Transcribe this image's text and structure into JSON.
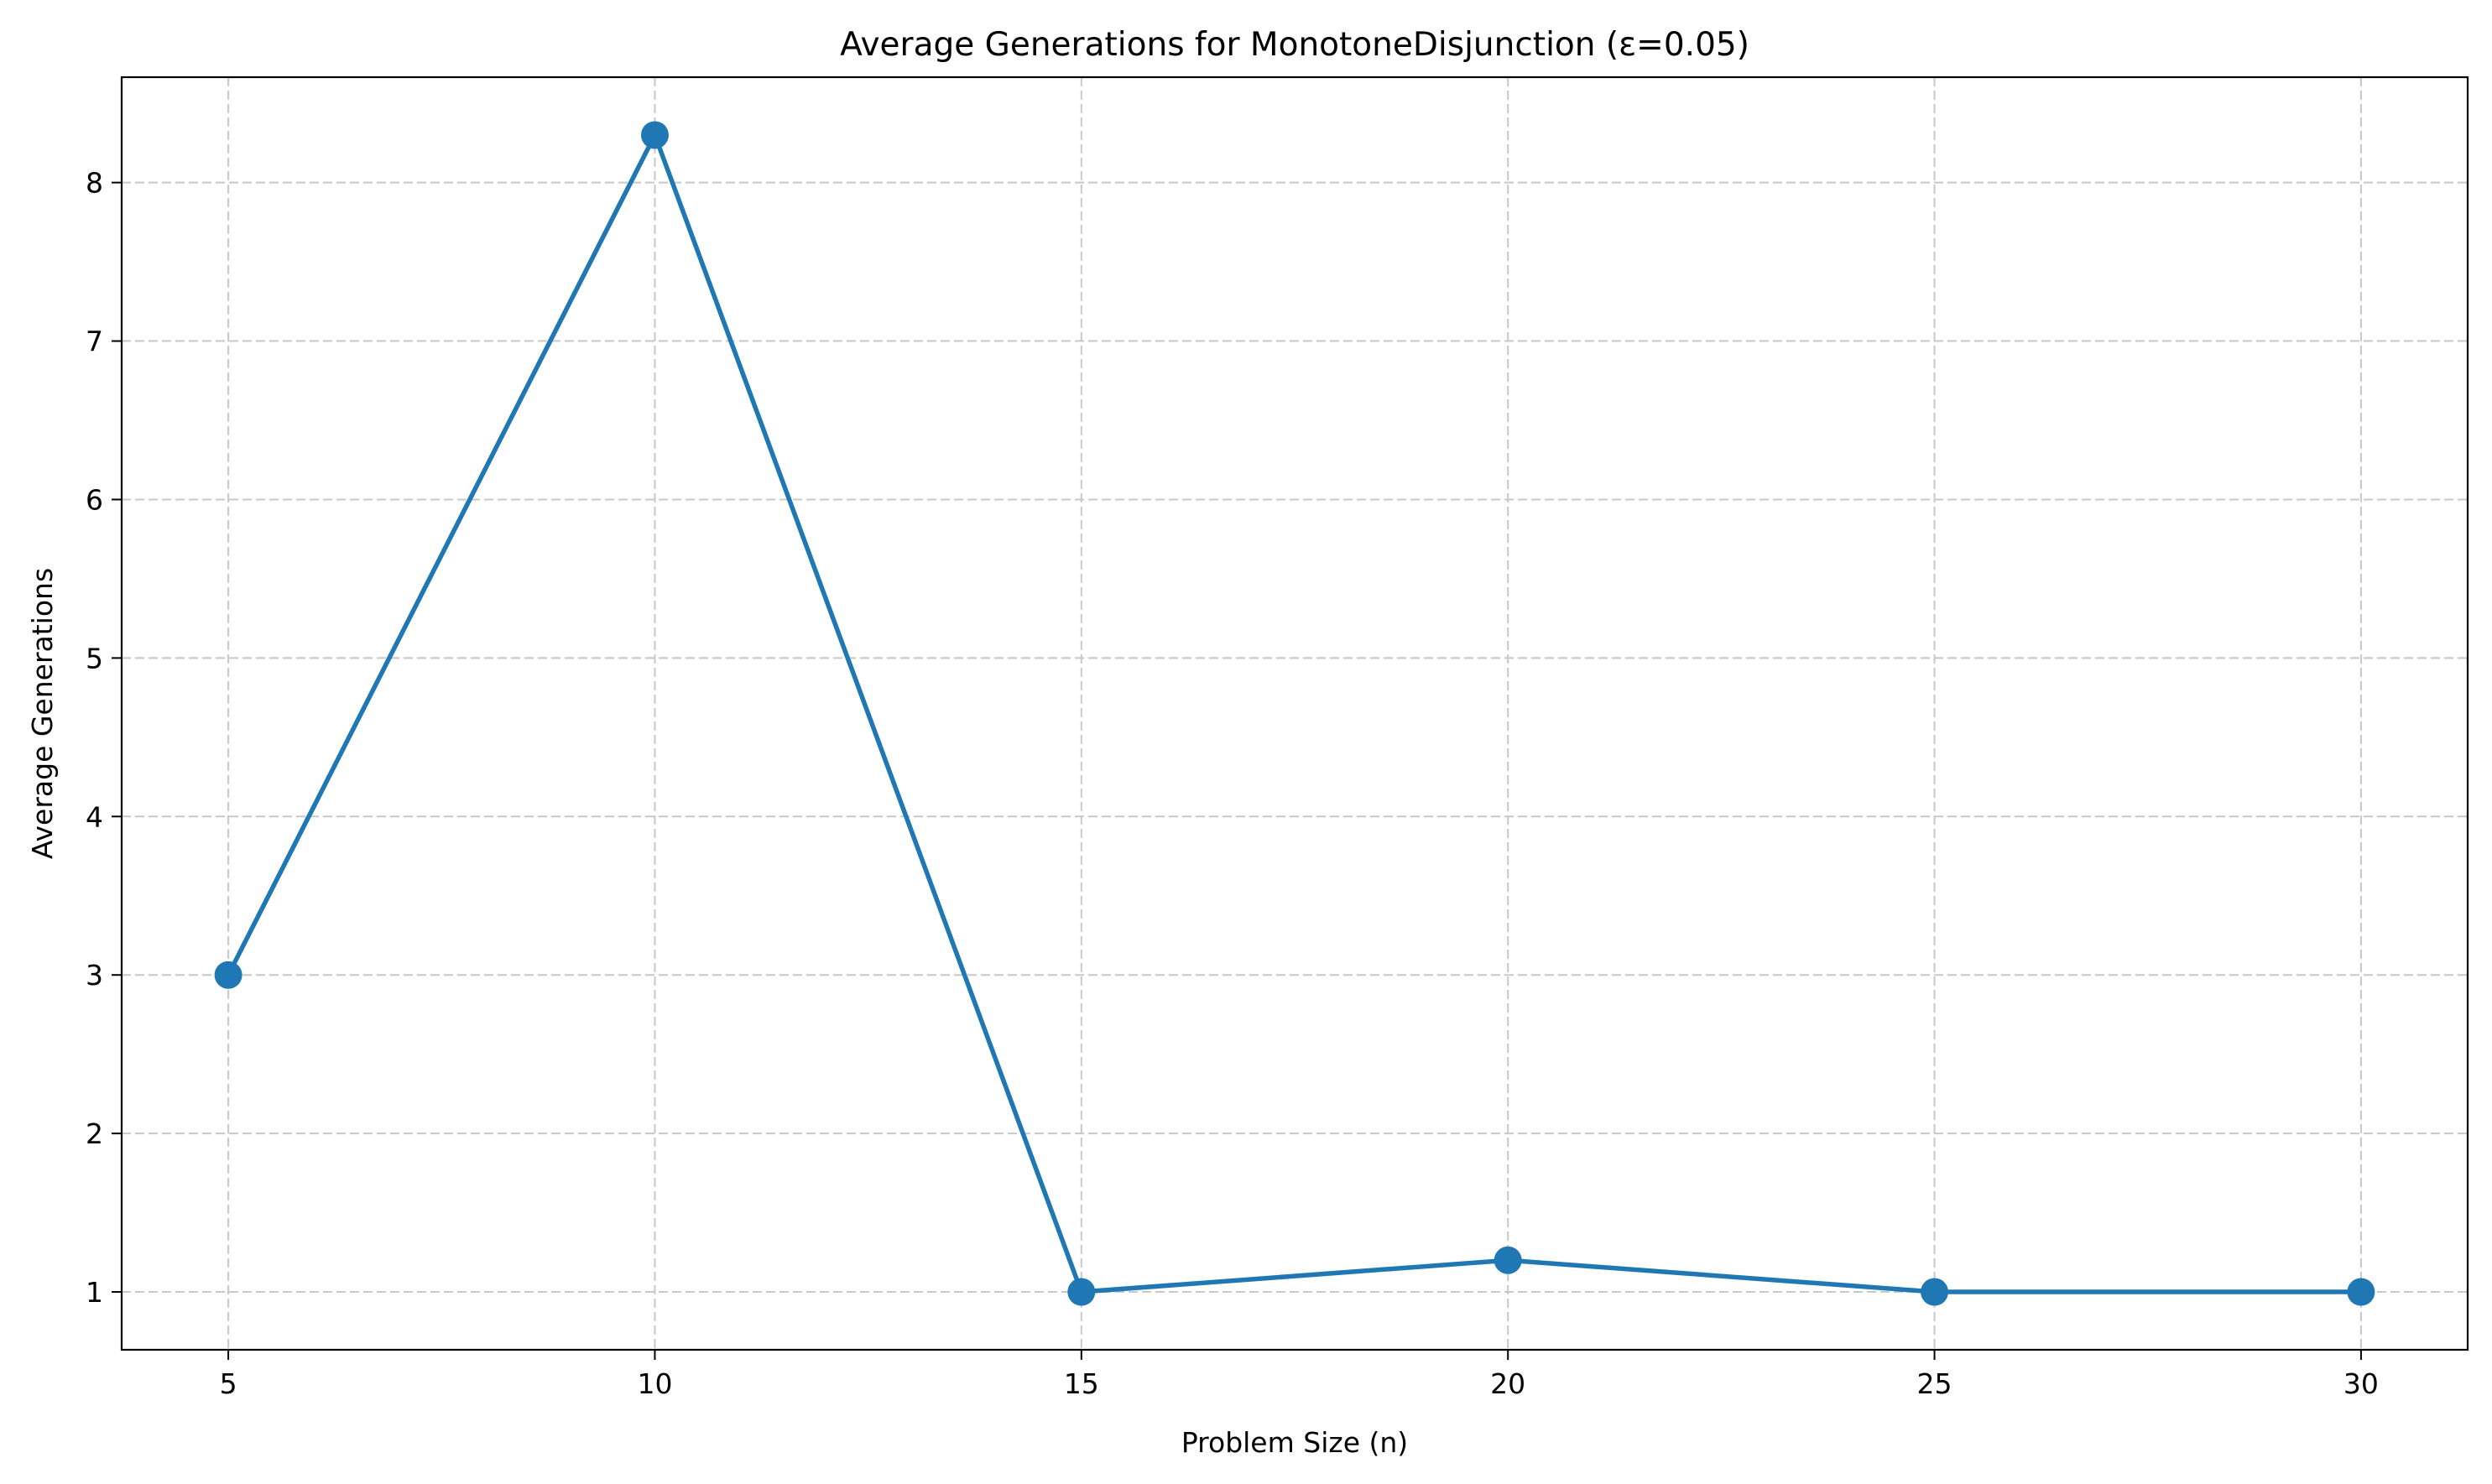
{
  "chart_data": {
    "type": "line",
    "title": "Average Generations for MonotoneDisjunction (ε=0.05)",
    "xlabel": "Problem Size (n)",
    "ylabel": "Average Generations",
    "x": [
      5,
      10,
      15,
      20,
      25,
      30
    ],
    "series": [
      {
        "values": [
          3.0,
          8.3,
          1.0,
          1.2,
          1.0,
          1.0
        ]
      }
    ],
    "xticks": [
      "5",
      "10",
      "15",
      "20",
      "25",
      "30"
    ],
    "yticks": [
      "1",
      "2",
      "3",
      "4",
      "5",
      "6",
      "7",
      "8"
    ],
    "xlim": [
      3.75,
      31.25
    ],
    "ylim": [
      0.635,
      8.665
    ],
    "grid": true,
    "grid_style": "dashed",
    "markers": "circle",
    "colors": {
      "series": "#1f77b4",
      "grid": "#c8c8c8",
      "axes": "#000000"
    }
  }
}
